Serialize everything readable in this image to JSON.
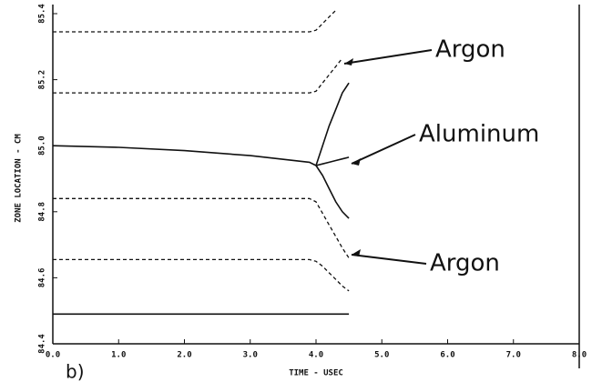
{
  "chart_data": {
    "type": "line",
    "xlabel": "TIME - USEC",
    "ylabel": "ZONE LOCATION - CM",
    "panel_label": "b)",
    "x": [
      0,
      1,
      2,
      3,
      3.9,
      4.0,
      4.1,
      4.2,
      4.3,
      4.4,
      4.5
    ],
    "series": [
      {
        "color": "#111111",
        "dashed": true,
        "values": [
          85.345,
          85.345,
          85.345,
          85.345,
          85.345,
          85.35,
          85.37,
          85.39,
          85.41,
          null,
          null
        ]
      },
      {
        "color": "#111111",
        "dashed": true,
        "values": [
          85.16,
          85.16,
          85.16,
          85.16,
          85.16,
          85.165,
          85.19,
          85.215,
          85.24,
          85.265,
          null
        ]
      },
      {
        "color": "#111111",
        "dashed": false,
        "values": [
          85.0,
          84.995,
          84.985,
          84.97,
          84.95,
          84.94,
          null,
          null,
          null,
          null,
          null
        ]
      },
      {
        "color": "#111111",
        "dashed": false,
        "values": [
          null,
          null,
          null,
          null,
          null,
          84.94,
          85.0,
          85.06,
          85.11,
          85.16,
          85.19
        ]
      },
      {
        "color": "#111111",
        "dashed": false,
        "values": [
          null,
          null,
          null,
          null,
          null,
          84.94,
          84.945,
          84.95,
          84.955,
          84.96,
          84.965
        ]
      },
      {
        "color": "#111111",
        "dashed": false,
        "values": [
          null,
          null,
          null,
          null,
          null,
          84.94,
          84.91,
          84.87,
          84.83,
          84.8,
          84.78
        ]
      },
      {
        "color": "#111111",
        "dashed": true,
        "values": [
          84.84,
          84.84,
          84.84,
          84.84,
          84.84,
          84.83,
          84.795,
          84.76,
          84.725,
          84.69,
          84.66
        ]
      },
      {
        "color": "#111111",
        "dashed": true,
        "values": [
          84.655,
          84.655,
          84.655,
          84.655,
          84.655,
          84.65,
          84.635,
          84.615,
          84.595,
          84.575,
          84.56
        ]
      },
      {
        "color": "#111111",
        "dashed": false,
        "values": [
          84.49,
          84.49,
          84.49,
          84.49,
          84.49,
          84.49,
          84.49,
          84.49,
          84.49,
          84.49,
          84.49
        ]
      }
    ],
    "annotations": [
      "Argon",
      "Aluminum",
      "Argon"
    ],
    "xlim": [
      0,
      8
    ],
    "xticks": [
      {
        "value": 0,
        "label": "0.0"
      },
      {
        "value": 1,
        "label": "1.0"
      },
      {
        "value": 2,
        "label": "2.0"
      },
      {
        "value": 3,
        "label": "3.0"
      },
      {
        "value": 4,
        "label": "4.0"
      },
      {
        "value": 5,
        "label": "5.0"
      },
      {
        "value": 6,
        "label": "6.0"
      },
      {
        "value": 7,
        "label": "7.0"
      },
      {
        "value": 8,
        "label": "8.0"
      }
    ],
    "ylim": [
      84.4,
      85.4
    ],
    "yticks": [
      84.4,
      84.6,
      84.8,
      {
        "value": 85,
        "label": "85.0"
      },
      85.2,
      85.4
    ]
  }
}
